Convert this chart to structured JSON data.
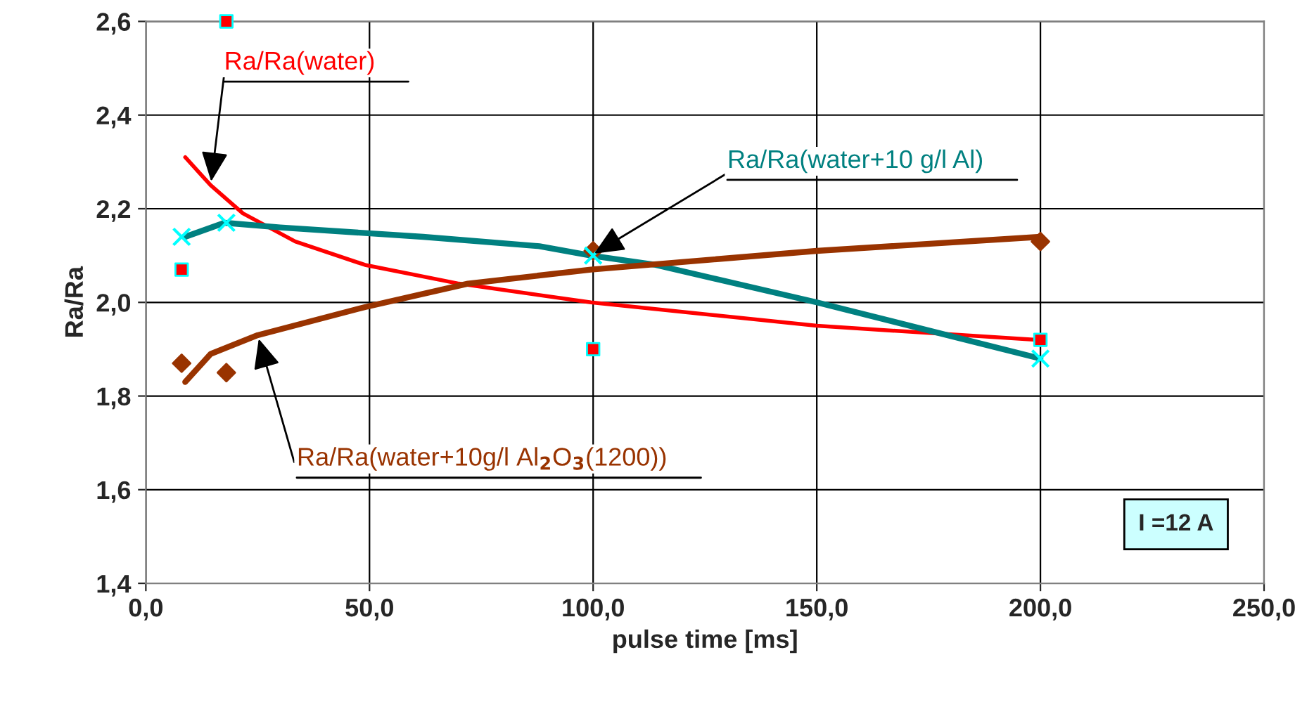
{
  "chart_data": {
    "type": "line",
    "xlabel": "pulse time [ms]",
    "ylabel": "Ra/Ra",
    "xlim": [
      0,
      250
    ],
    "ylim": [
      1.4,
      2.6
    ],
    "xticks": [
      {
        "value": 0,
        "label": "0,0"
      },
      {
        "value": 50,
        "label": "50,0"
      },
      {
        "value": 100,
        "label": "100,0"
      },
      {
        "value": 150,
        "label": "150,0"
      },
      {
        "value": 200,
        "label": "200,0"
      },
      {
        "value": 250,
        "label": "250,0"
      }
    ],
    "yticks": [
      {
        "value": 1.4,
        "label": "1,4"
      },
      {
        "value": 1.6,
        "label": "1,6"
      },
      {
        "value": 1.8,
        "label": "1,8"
      },
      {
        "value": 2.0,
        "label": "2,0"
      },
      {
        "value": 2.2,
        "label": "2,2"
      },
      {
        "value": 2.4,
        "label": "2,4"
      },
      {
        "value": 2.6,
        "label": "2,6"
      }
    ],
    "grid": true,
    "legend": false,
    "series": [
      {
        "name": "Ra/Ra(water)",
        "marker": "none",
        "color": "#ff0000",
        "x": [
          8.8,
          14.5,
          21.7,
          33.4,
          49,
          70,
          99.5,
          150,
          199
        ],
        "values": [
          2.31,
          2.25,
          2.19,
          2.13,
          2.08,
          2.04,
          2.0,
          1.95,
          1.92
        ]
      },
      {
        "name": "Ra/Ra(water+10 g/l Al)",
        "marker": "none",
        "color": "#008080",
        "x": [
          8.8,
          17.6,
          30,
          62,
          88,
          99.5,
          114,
          150,
          200
        ],
        "values": [
          2.14,
          2.17,
          2.16,
          2.14,
          2.12,
          2.1,
          2.08,
          2.0,
          1.88
        ]
      },
      {
        "name": "Ra/Ra(water+10g/l Al$_{2}$O$_{3}$(1200))",
        "marker": "none",
        "color": "#993300",
        "x": [
          8.8,
          14.5,
          25,
          49,
          72,
          99.5,
          150,
          200
        ],
        "values": [
          1.83,
          1.89,
          1.93,
          1.99,
          2.04,
          2.07,
          2.11,
          2.14
        ]
      },
      {
        "type": "scatter",
        "marker": "square",
        "color": "#ff0000",
        "x": [
          8,
          18,
          100,
          200
        ],
        "values": [
          2.07,
          2.6,
          1.9,
          1.92
        ]
      },
      {
        "type": "scatter",
        "marker": "cross",
        "color": "#00ffff",
        "x": [
          8,
          18,
          100,
          200
        ],
        "values": [
          2.14,
          2.17,
          2.1,
          1.88
        ]
      },
      {
        "type": "scatter",
        "marker": "diamond",
        "color": "#993300",
        "x": [
          8,
          18,
          100,
          200
        ],
        "values": [
          1.87,
          1.85,
          2.11,
          2.13
        ]
      }
    ],
    "annotations": [
      "I =12 A"
    ]
  }
}
